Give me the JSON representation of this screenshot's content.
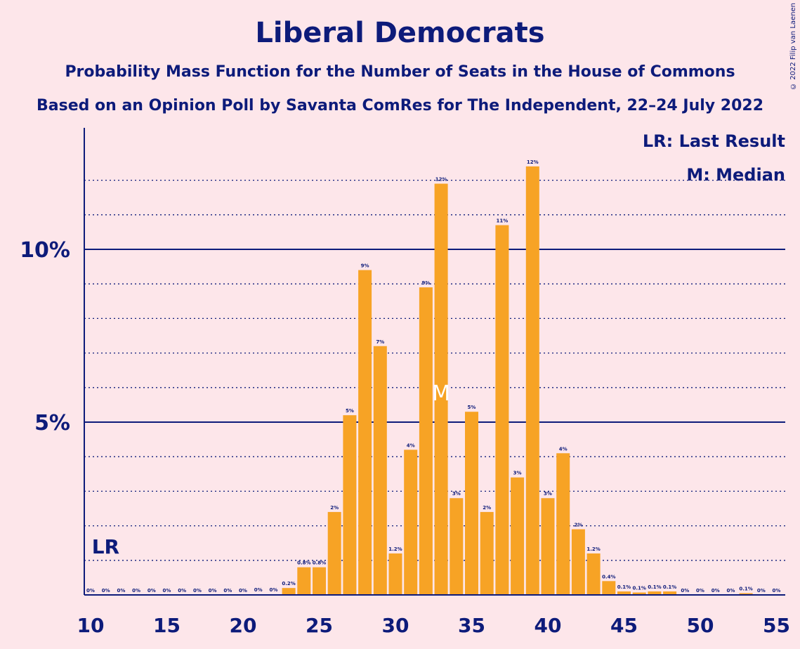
{
  "title": "Liberal Democrats",
  "subtitle": "Probability Mass Function for the Number of Seats in the House of Commons",
  "source": "Based on an Opinion Poll by Savanta ComRes for The Independent, 22–24 July 2022",
  "copyright": "© 2022 Filip van Laenen",
  "legend": {
    "last_result": "LR: Last Result",
    "median": "M: Median"
  },
  "markers": {
    "last_result_label": "LR",
    "median_label": "M",
    "last_result_seat": 11,
    "median_seat": 33
  },
  "colors": {
    "background": "#fde6ea",
    "bar": "#f7a325",
    "axis": "#0d1b7a",
    "text": "#0d1b7a"
  },
  "chart_data": {
    "type": "bar",
    "x": [
      10,
      11,
      12,
      13,
      14,
      15,
      16,
      17,
      18,
      19,
      20,
      21,
      22,
      23,
      24,
      25,
      26,
      27,
      28,
      29,
      30,
      31,
      32,
      33,
      34,
      35,
      36,
      37,
      38,
      39,
      40,
      41,
      42,
      43,
      44,
      45,
      46,
      47,
      48,
      49,
      50,
      51,
      52,
      53,
      54,
      55
    ],
    "values": [
      0,
      0,
      0,
      0,
      0,
      0,
      0,
      0,
      0,
      0,
      0,
      0.02,
      0.02,
      0.2,
      0.8,
      0.8,
      2.4,
      5.2,
      9.4,
      7.2,
      1.2,
      4.2,
      8.9,
      11.9,
      2.8,
      5.3,
      2.4,
      10.7,
      3.4,
      12.4,
      2.8,
      4.1,
      1.9,
      1.2,
      0.4,
      0.1,
      0.07,
      0.1,
      0.1,
      0,
      0,
      0,
      0,
      0.05,
      0,
      0
    ],
    "labels": [
      "0%",
      "0%",
      "0%",
      "0%",
      "0%",
      "0%",
      "0%",
      "0%",
      "0%",
      "0%",
      "0%",
      "0%",
      "0%",
      "0.2%",
      "0.8%",
      "0.8%",
      "2%",
      "5%",
      "9%",
      "7%",
      "1.2%",
      "4%",
      "9%",
      "12%",
      "3%",
      "5%",
      "2%",
      "11%",
      "3%",
      "12%",
      "3%",
      "4%",
      "2%",
      "1.2%",
      "0.4%",
      "0.1%",
      "0.1%",
      "0.1%",
      "0.1%",
      "0%",
      "0%",
      "0%",
      "0%",
      "0.1%",
      "0%",
      "0%"
    ],
    "x_ticks": [
      10,
      15,
      20,
      25,
      30,
      35,
      40,
      45,
      50,
      55
    ],
    "y_ticks": [
      {
        "value": 5,
        "label": "5%"
      },
      {
        "value": 10,
        "label": "10%"
      }
    ],
    "ylim": [
      0,
      13.5
    ],
    "grid": "dotted at every 1%, solid at 5% and 10%"
  }
}
